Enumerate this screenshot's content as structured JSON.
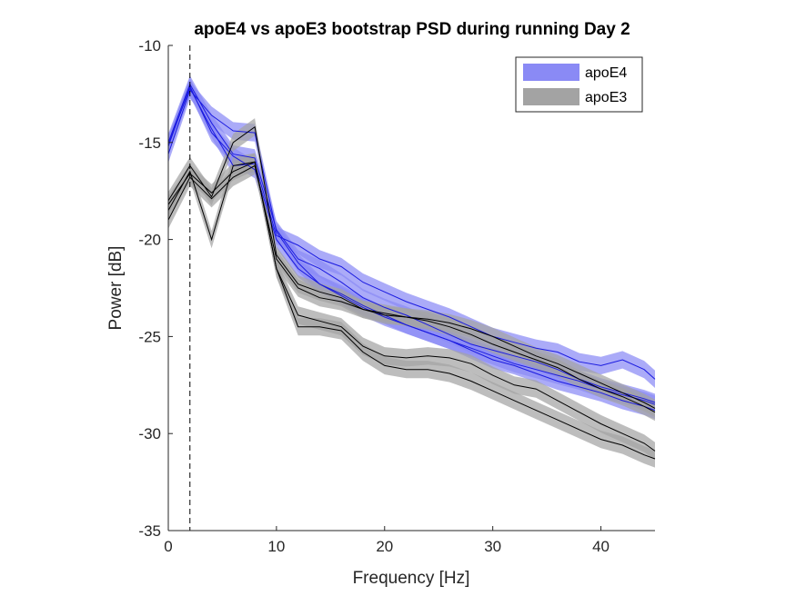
{
  "chart_data": {
    "type": "line",
    "title": "apoE4 vs apoE3 bootstrap PSD during running Day 2",
    "xlabel": "Frequency [Hz]",
    "ylabel": "Power [dB]",
    "xlim": [
      0,
      45
    ],
    "ylim": [
      -35,
      -10
    ],
    "xticks": [
      0,
      10,
      20,
      30,
      40
    ],
    "yticks": [
      -35,
      -30,
      -25,
      -20,
      -15,
      -10
    ],
    "xtick_labels": [
      "0",
      "10",
      "20",
      "30",
      "40"
    ],
    "ytick_labels": [
      "-35",
      "-30",
      "-25",
      "-20",
      "-15",
      "-10"
    ],
    "grid": false,
    "legend_position": "top-right",
    "vline_x": 2,
    "x": [
      0,
      2,
      4,
      6,
      8,
      10,
      12,
      14,
      16,
      18,
      20,
      22,
      24,
      26,
      28,
      30,
      32,
      34,
      36,
      38,
      40,
      42,
      44,
      45
    ],
    "groups": [
      {
        "name": "apoE4",
        "line_color": "#1a1ae0",
        "band_color": "#8a8af5",
        "band_halfwidth": 0.45,
        "series": [
          [
            -15.0,
            -12.0,
            -14.0,
            -15.6,
            -15.8,
            -19.5,
            -21.0,
            -21.5,
            -22.2,
            -23.0,
            -23.5,
            -23.9,
            -24.4,
            -24.9,
            -25.4,
            -25.7,
            -26.0,
            -26.3,
            -26.7,
            -27.2,
            -27.6,
            -27.9,
            -28.2,
            -28.4
          ],
          [
            -15.1,
            -12.2,
            -14.3,
            -16.2,
            -16.1,
            -19.8,
            -20.3,
            -21.0,
            -21.4,
            -22.2,
            -22.7,
            -23.2,
            -23.6,
            -24.0,
            -24.5,
            -25.0,
            -25.3,
            -25.6,
            -25.8,
            -26.3,
            -26.5,
            -26.2,
            -26.7,
            -27.2
          ],
          [
            -15.2,
            -12.1,
            -14.5,
            -15.7,
            -16.4,
            -20.0,
            -21.5,
            -22.3,
            -22.9,
            -23.5,
            -24.0,
            -24.4,
            -24.8,
            -25.2,
            -25.6,
            -26.0,
            -26.4,
            -26.7,
            -27.0,
            -27.3,
            -27.7,
            -28.0,
            -28.3,
            -28.5
          ],
          [
            -15.6,
            -12.3,
            -13.6,
            -14.4,
            -14.5,
            -19.6,
            -21.2,
            -22.3,
            -22.8,
            -23.4,
            -23.9,
            -24.4,
            -24.8,
            -25.2,
            -25.7,
            -26.2,
            -26.5,
            -26.9,
            -27.3,
            -27.6,
            -27.9,
            -28.3,
            -28.6,
            -28.8
          ]
        ]
      },
      {
        "name": "apoE3",
        "line_color": "#000000",
        "band_color": "#a3a3a3",
        "band_halfwidth": 0.45,
        "series": [
          [
            -18.0,
            -16.2,
            -17.8,
            -15.0,
            -14.2,
            -20.8,
            -22.3,
            -22.7,
            -23.0,
            -23.6,
            -23.8,
            -24.0,
            -24.2,
            -24.5,
            -24.9,
            -25.4,
            -25.8,
            -26.2,
            -26.6,
            -27.2,
            -27.7,
            -28.1,
            -28.6,
            -28.9
          ],
          [
            -18.5,
            -16.5,
            -20.0,
            -16.2,
            -16.0,
            -21.5,
            -24.5,
            -24.5,
            -24.7,
            -25.8,
            -26.5,
            -26.7,
            -26.7,
            -26.9,
            -27.3,
            -27.8,
            -28.3,
            -28.8,
            -29.3,
            -29.8,
            -30.3,
            -30.6,
            -31.1,
            -31.3
          ],
          [
            -18.2,
            -16.6,
            -17.6,
            -16.5,
            -16.0,
            -21.5,
            -23.9,
            -24.2,
            -24.5,
            -25.5,
            -26.0,
            -26.1,
            -26.0,
            -26.1,
            -26.4,
            -27.0,
            -27.5,
            -27.7,
            -28.3,
            -28.9,
            -29.5,
            -30.0,
            -30.5,
            -30.9
          ],
          [
            -19.0,
            -16.8,
            -17.9,
            -16.8,
            -16.2,
            -21.0,
            -22.5,
            -23.0,
            -23.2,
            -23.6,
            -23.9,
            -24.0,
            -24.1,
            -24.3,
            -24.6,
            -25.0,
            -25.5,
            -26.0,
            -26.4,
            -26.9,
            -27.4,
            -27.9,
            -28.4,
            -28.7
          ]
        ]
      }
    ]
  }
}
